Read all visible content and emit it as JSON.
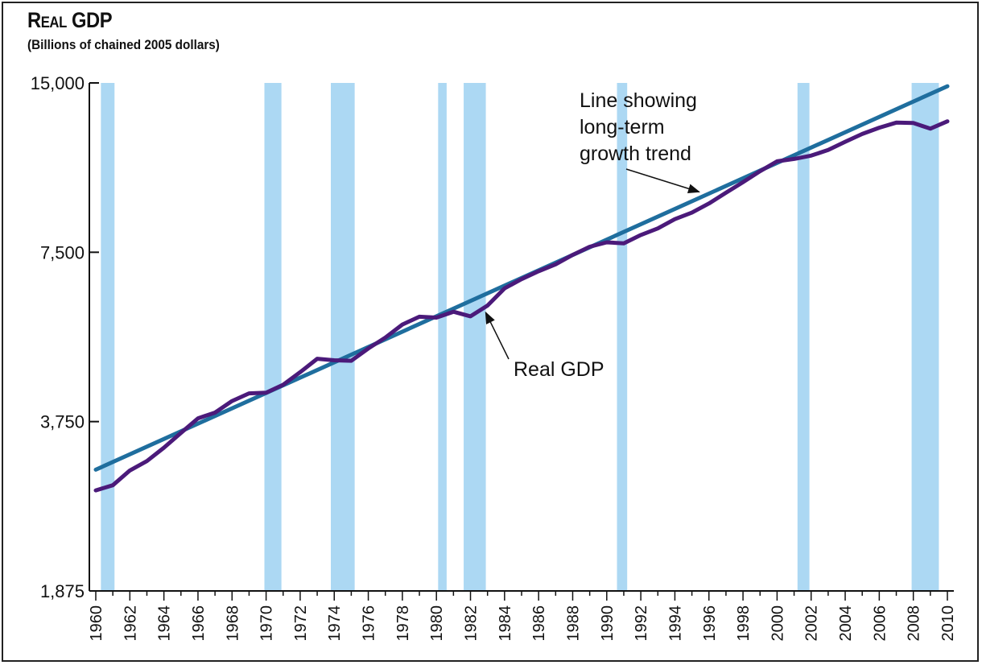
{
  "chart_data": {
    "type": "line",
    "title": "Real GDP",
    "subtitle": "(Billions of chained 2005 dollars)",
    "y_scale": "log",
    "ylim": [
      1875,
      15000
    ],
    "xlim": [
      1960,
      2010
    ],
    "yticks": [
      {
        "value": 1875,
        "label": "1,875"
      },
      {
        "value": 3750,
        "label": "3,750"
      },
      {
        "value": 7500,
        "label": "7,500"
      },
      {
        "value": 15000,
        "label": "15,000"
      }
    ],
    "xticks": [
      1960,
      1962,
      1964,
      1966,
      1968,
      1970,
      1972,
      1974,
      1976,
      1978,
      1980,
      1982,
      1984,
      1986,
      1988,
      1990,
      1992,
      1994,
      1996,
      1998,
      2000,
      2002,
      2004,
      2006,
      2008,
      2010
    ],
    "recessions": [
      [
        1960.3,
        1961.1
      ],
      [
        1969.9,
        1970.9
      ],
      [
        1973.8,
        1975.2
      ],
      [
        1980.1,
        1980.6
      ],
      [
        1981.6,
        1982.9
      ],
      [
        1990.6,
        1991.2
      ],
      [
        2001.2,
        2001.9
      ],
      [
        2007.9,
        2009.5
      ]
    ],
    "series": [
      {
        "name": "Real GDP",
        "color": "#4b1a7a",
        "x": [
          1960,
          1961,
          1962,
          1963,
          1964,
          1965,
          1966,
          1967,
          1968,
          1969,
          1970,
          1971,
          1972,
          1973,
          1974,
          1975,
          1976,
          1977,
          1978,
          1979,
          1980,
          1981,
          1982,
          1983,
          1984,
          1985,
          1986,
          1987,
          1988,
          1989,
          1990,
          1991,
          1992,
          1993,
          1994,
          1995,
          1996,
          1997,
          1998,
          1999,
          2000,
          2001,
          2002,
          2003,
          2004,
          2005,
          2006,
          2007,
          2008,
          2009,
          2010
        ],
        "values": [
          2830,
          2890,
          3070,
          3190,
          3370,
          3580,
          3800,
          3890,
          4080,
          4210,
          4220,
          4360,
          4590,
          4850,
          4820,
          4810,
          5060,
          5290,
          5580,
          5760,
          5740,
          5880,
          5770,
          6030,
          6470,
          6720,
          6940,
          7140,
          7420,
          7670,
          7810,
          7780,
          8050,
          8270,
          8590,
          8820,
          9160,
          9570,
          9990,
          10450,
          10880,
          10990,
          11140,
          11400,
          11790,
          12170,
          12490,
          12750,
          12730,
          12440,
          12820
        ]
      },
      {
        "name": "Line showing long-term growth trend",
        "color": "#1f6e9e",
        "x": [
          1960,
          2010
        ],
        "values": [
          3080,
          14800
        ]
      }
    ],
    "annotations": [
      {
        "text_lines": [
          "Line showing",
          "long-term",
          "growth trend"
        ],
        "points_to_x": 1995.8
      },
      {
        "text_lines": [
          "Real GDP"
        ],
        "points_to_x": 1982.8
      }
    ]
  }
}
